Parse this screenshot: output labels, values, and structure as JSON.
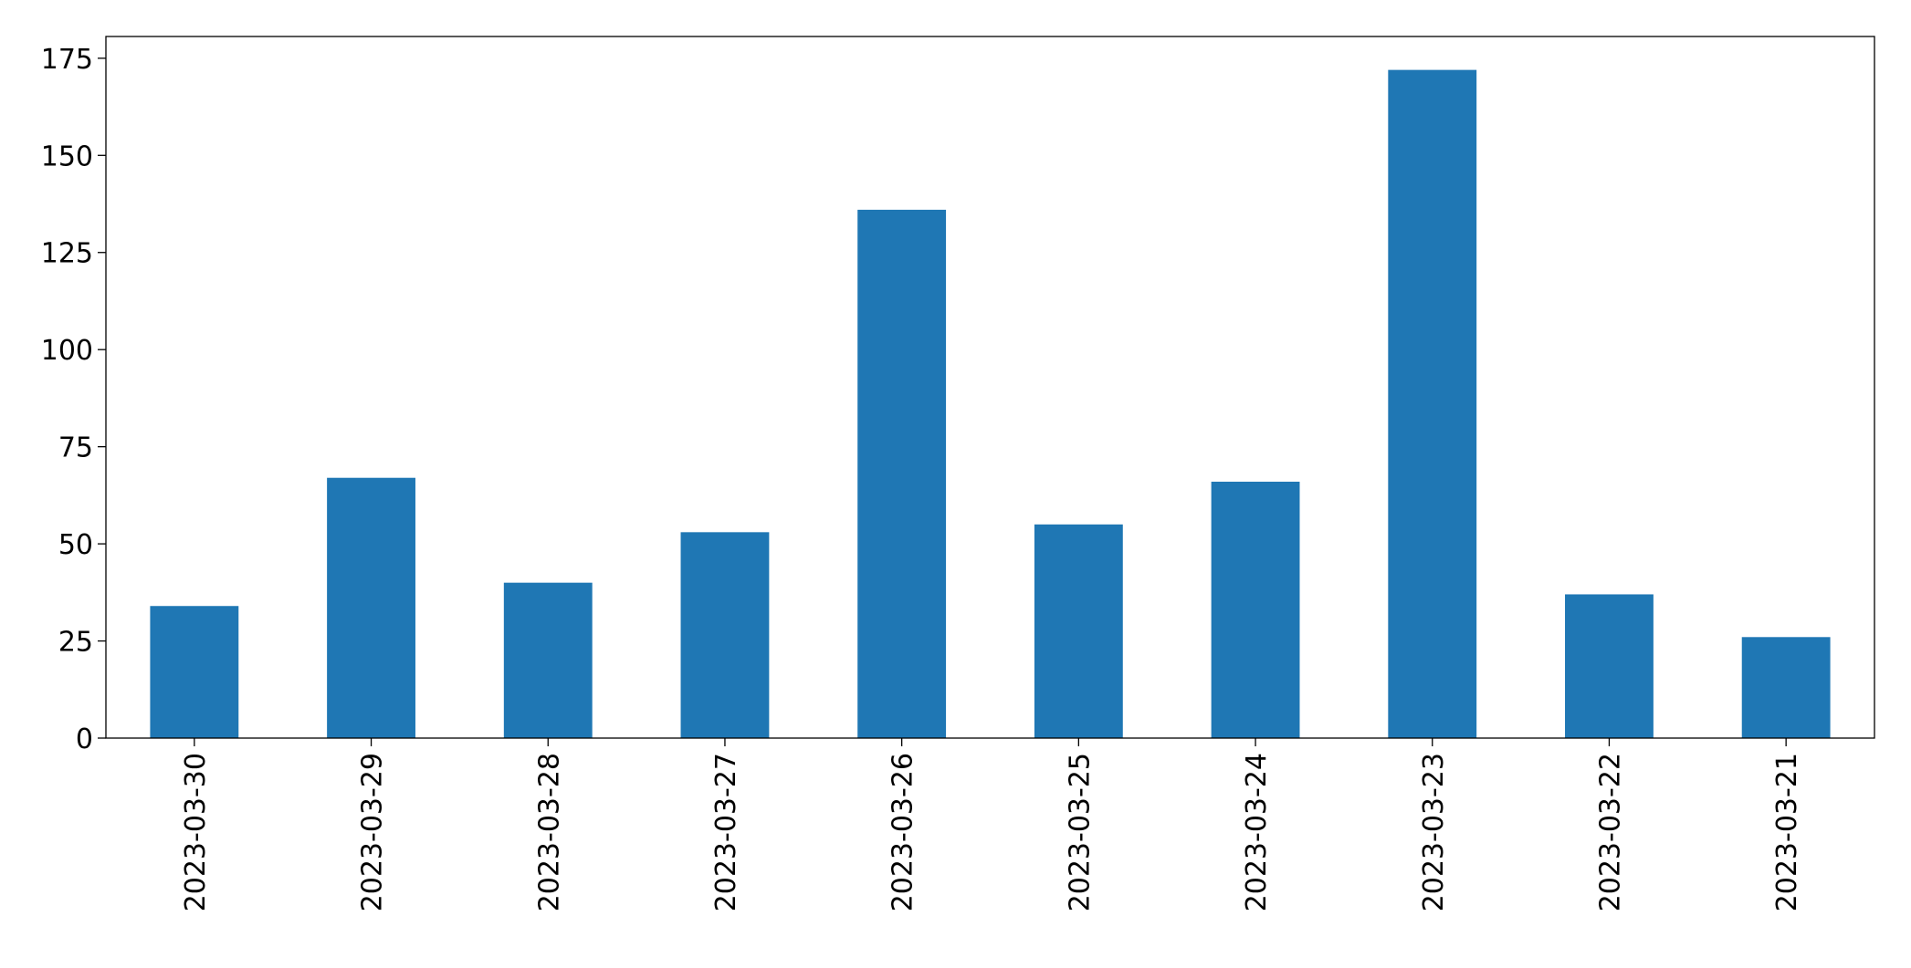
{
  "chart_data": {
    "type": "bar",
    "categories": [
      "2023-03-30",
      "2023-03-29",
      "2023-03-28",
      "2023-03-27",
      "2023-03-26",
      "2023-03-25",
      "2023-03-24",
      "2023-03-23",
      "2023-03-22",
      "2023-03-21"
    ],
    "values": [
      34,
      67,
      40,
      53,
      136,
      55,
      66,
      172,
      37,
      26
    ],
    "color": "#1f77b4",
    "ylim": [
      0,
      180.6
    ],
    "yticks": [
      0,
      25,
      50,
      75,
      100,
      125,
      150,
      175
    ],
    "grid": false
  }
}
